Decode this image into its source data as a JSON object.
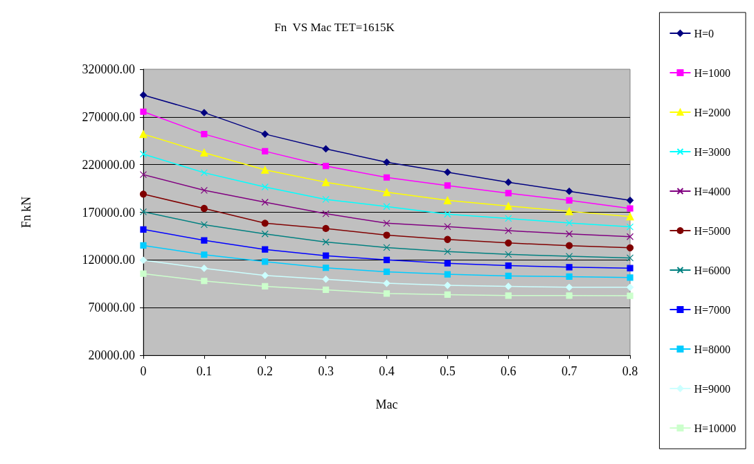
{
  "chart_data": {
    "type": "line",
    "title": "Fn  VS Mac TET=1615K",
    "xlabel": "Mac",
    "ylabel": "Fn kN",
    "x": [
      0,
      0.1,
      0.2,
      0.3,
      0.4,
      0.5,
      0.6,
      0.7,
      0.8
    ],
    "xlim": [
      0,
      0.8
    ],
    "xticks": [
      0,
      0.1,
      0.2,
      0.3,
      0.4,
      0.5,
      0.6,
      0.7,
      0.8
    ],
    "ylim": [
      20000,
      320000
    ],
    "yticks": [
      {
        "value": 20000,
        "label": "20000.00"
      },
      {
        "value": 70000,
        "label": "70000.00"
      },
      {
        "value": 120000,
        "label": "120000.00"
      },
      {
        "value": 170000,
        "label": "170000.00"
      },
      {
        "value": 220000,
        "label": "220000.00"
      },
      {
        "value": 270000,
        "label": "270000.00"
      },
      {
        "value": 320000,
        "label": "320000.00"
      }
    ],
    "grid": "y",
    "legend": "right",
    "line_style": "solid",
    "series": [
      {
        "name": "H=0",
        "color": "#000080",
        "marker": "diamond",
        "values": [
          293000,
          274500,
          252000,
          236500,
          222500,
          212000,
          201500,
          192000,
          182500
        ]
      },
      {
        "name": "H=1000",
        "color": "#ff00ff",
        "marker": "square",
        "values": [
          275500,
          252000,
          234000,
          218500,
          206500,
          198000,
          190000,
          182500,
          174000
        ]
      },
      {
        "name": "H=2000",
        "color": "#ffff00",
        "marker": "triangle",
        "values": [
          252000,
          232500,
          214500,
          201500,
          191000,
          182500,
          176500,
          171000,
          165500
        ]
      },
      {
        "name": "H=3000",
        "color": "#00ffff",
        "marker": "cross",
        "values": [
          231000,
          211500,
          196500,
          183500,
          176000,
          168000,
          163500,
          158800,
          154700
        ]
      },
      {
        "name": "H=4000",
        "color": "#800080",
        "marker": "cross",
        "values": [
          209500,
          193000,
          180500,
          168500,
          158500,
          155000,
          150700,
          147300,
          144400
        ]
      },
      {
        "name": "H=5000",
        "color": "#800000",
        "marker": "circle",
        "values": [
          189000,
          174000,
          158500,
          153000,
          146000,
          141500,
          137800,
          135000,
          132700
        ]
      },
      {
        "name": "H=6000",
        "color": "#008080",
        "marker": "cross",
        "values": [
          170500,
          157000,
          147300,
          138800,
          133000,
          128700,
          125800,
          123800,
          122100
        ]
      },
      {
        "name": "H=7000",
        "color": "#0000ff",
        "marker": "square",
        "values": [
          152000,
          140500,
          131000,
          124500,
          120000,
          116500,
          114000,
          112400,
          111400
        ]
      },
      {
        "name": "H=8000",
        "color": "#00ccff",
        "marker": "square",
        "values": [
          135200,
          125500,
          118200,
          111700,
          107600,
          104900,
          103200,
          102500,
          101500
        ]
      },
      {
        "name": "H=9000",
        "color": "#ccffff",
        "marker": "diamond",
        "values": [
          119700,
          111200,
          103700,
          99800,
          95500,
          93300,
          92300,
          91300,
          91300
        ]
      },
      {
        "name": "H=10000",
        "color": "#ccffcc",
        "marker": "square",
        "values": [
          105600,
          97900,
          92300,
          88700,
          84800,
          83600,
          82600,
          82600,
          82400
        ]
      }
    ]
  }
}
